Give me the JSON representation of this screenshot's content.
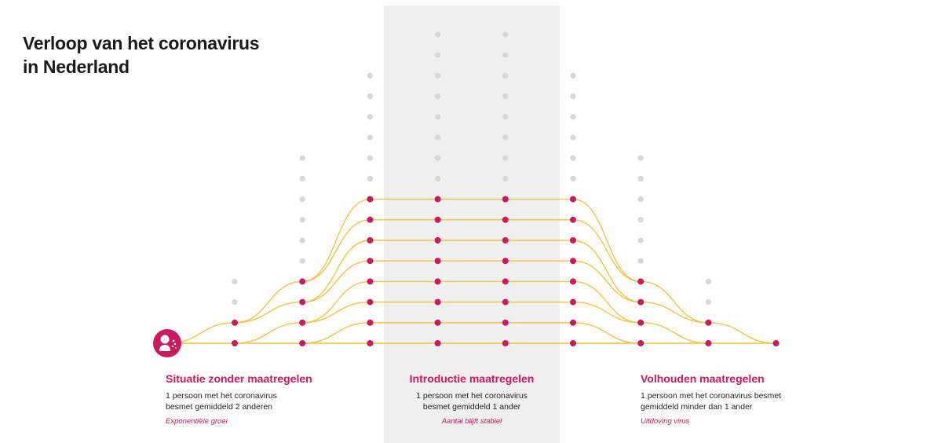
{
  "title": {
    "line1": "Verloop van het coronavirus",
    "line2": "in Nederland"
  },
  "colors": {
    "accent": "#c9195f",
    "connector": "#f0c24a",
    "inactive_dot": "#d6d6d6",
    "band": "#efefef"
  },
  "source_icon": "infected-person-icon",
  "diagram": {
    "columns": [
      {
        "step": 1,
        "total_dots": 4,
        "infected": 2
      },
      {
        "step": 2,
        "total_dots": 10,
        "infected": 4
      },
      {
        "step": 3,
        "total_dots": 14,
        "infected": 8
      },
      {
        "step": 4,
        "total_dots": 16,
        "infected": 8
      },
      {
        "step": 5,
        "total_dots": 16,
        "infected": 8
      },
      {
        "step": 6,
        "total_dots": 14,
        "infected": 8
      },
      {
        "step": 7,
        "total_dots": 10,
        "infected": 4
      },
      {
        "step": 8,
        "total_dots": 4,
        "infected": 2
      },
      {
        "step": 9,
        "total_dots": 1,
        "infected": 1
      }
    ]
  },
  "captions": {
    "left": {
      "heading": "Situatie zonder maatregelen",
      "line1": "1 persoon met het coronavirus",
      "line2": "besmet gemiddeld 2 anderen",
      "note": "Exponentiële groei"
    },
    "middle": {
      "heading": "Introductie maatregelen",
      "line1": "1 persoon met het coronavirus",
      "line2": "besmet gemiddeld 1 ander",
      "note": "Aantal blijft stabiel"
    },
    "right": {
      "heading": "Volhouden maatregelen",
      "line1": "1 persoon met het coronavirus besmet",
      "line2": "gemiddeld minder dan 1 ander",
      "note": "Uitdoving virus"
    }
  }
}
